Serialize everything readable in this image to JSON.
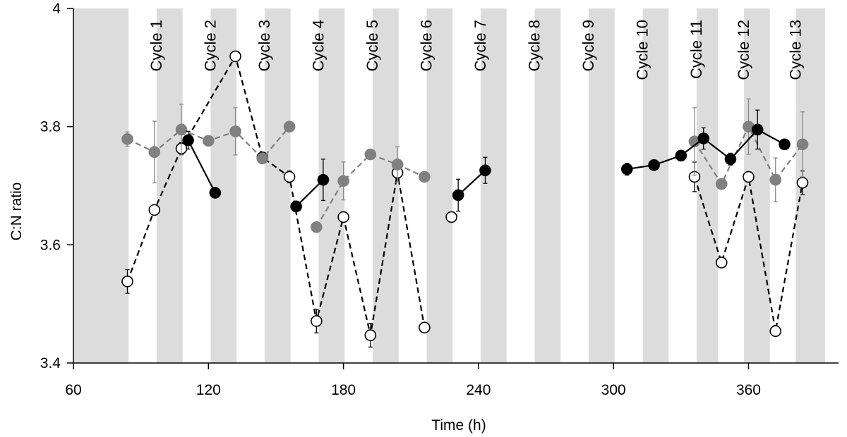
{
  "chart_data": {
    "type": "scatter",
    "title": "",
    "xlabel": "Time (h)",
    "ylabel": "C:N ratio",
    "xlim": [
      60,
      400
    ],
    "ylim": [
      3.4,
      4.0
    ],
    "xticks": [
      60,
      120,
      180,
      240,
      300,
      360
    ],
    "yticks": [
      3.4,
      3.6,
      3.8,
      4.0
    ],
    "xtick_labels": [
      "60",
      "120",
      "180",
      "240",
      "300",
      "360"
    ],
    "ytick_labels": [
      "3.4",
      "3.6",
      "3.8",
      "4"
    ],
    "shaded_bands": [
      [
        60,
        84.5
      ],
      [
        97,
        108.5
      ],
      [
        121,
        132.5
      ],
      [
        145,
        156.5
      ],
      [
        169,
        180.5
      ],
      [
        193,
        204.5
      ],
      [
        217,
        228.5
      ],
      [
        241,
        252.5
      ],
      [
        265,
        276.5
      ],
      [
        289,
        300.5
      ],
      [
        313,
        324.5
      ],
      [
        337,
        346.5
      ],
      [
        358,
        369.5
      ],
      [
        381,
        394
      ]
    ],
    "cycle_labels": [
      {
        "text": "Cycle 1",
        "x": 97
      },
      {
        "text": "Cycle 2",
        "x": 121
      },
      {
        "text": "Cycle 3",
        "x": 145
      },
      {
        "text": "Cycle 4",
        "x": 169
      },
      {
        "text": "Cycle 5",
        "x": 193
      },
      {
        "text": "Cycle 6",
        "x": 217
      },
      {
        "text": "Cycle 7",
        "x": 241
      },
      {
        "text": "Cycle 8",
        "x": 265
      },
      {
        "text": "Cycle 9",
        "x": 289
      },
      {
        "text": "Cycle 10",
        "x": 313
      },
      {
        "text": "Cycle 11",
        "x": 337
      },
      {
        "text": "Cycle 12",
        "x": 358
      },
      {
        "text": "Cycle 13",
        "x": 381
      }
    ],
    "series": [
      {
        "name": "open-circles",
        "marker": "open",
        "line": "dashed",
        "color": "#000000",
        "segments": [
          [
            {
              "x": 84,
              "y": 3.538,
              "err": 0.02
            },
            {
              "x": 96,
              "y": 3.659,
              "err": 0.005
            },
            {
              "x": 108,
              "y": 3.763,
              "err": 0.01
            },
            {
              "x": 132,
              "y": 3.919,
              "err": 0.005
            },
            {
              "x": 144,
              "y": 3.748,
              "err": 0.005
            },
            {
              "x": 156,
              "y": 3.715,
              "err": 0.01
            },
            {
              "x": 168,
              "y": 3.471,
              "err": 0.02
            },
            {
              "x": 180,
              "y": 3.647,
              "err": 0.005
            },
            {
              "x": 192,
              "y": 3.447,
              "err": 0.02
            },
            {
              "x": 204,
              "y": 3.722,
              "err": 0.01
            },
            {
              "x": 216,
              "y": 3.46,
              "err": 0.005
            }
          ],
          [
            {
              "x": 228,
              "y": 3.647,
              "err": 0.005
            }
          ],
          [
            {
              "x": 336,
              "y": 3.715,
              "err": 0.025
            },
            {
              "x": 348,
              "y": 3.57,
              "err": 0.005
            },
            {
              "x": 360,
              "y": 3.715,
              "err": 0.005
            },
            {
              "x": 372,
              "y": 3.454,
              "err": 0.005
            },
            {
              "x": 384,
              "y": 3.705,
              "err": 0.02
            }
          ]
        ]
      },
      {
        "name": "grey-circles",
        "marker": "filled",
        "line": "dashed",
        "color": "#808080",
        "segments": [
          [
            {
              "x": 84,
              "y": 3.779,
              "err": 0.012
            },
            {
              "x": 96,
              "y": 3.757,
              "err": 0.052
            },
            {
              "x": 108,
              "y": 3.795,
              "err": 0.043
            },
            {
              "x": 120,
              "y": 3.776,
              "err": 0.005
            },
            {
              "x": 132,
              "y": 3.792,
              "err": 0.04
            },
            {
              "x": 144,
              "y": 3.746,
              "err": 0.008
            },
            {
              "x": 156,
              "y": 3.8,
              "err": 0.005
            }
          ],
          [
            {
              "x": 168,
              "y": 3.63,
              "err": 0.006
            },
            {
              "x": 180,
              "y": 3.708,
              "err": 0.032
            },
            {
              "x": 192,
              "y": 3.753,
              "err": 0.005
            },
            {
              "x": 204,
              "y": 3.736,
              "err": 0.03
            },
            {
              "x": 216,
              "y": 3.715,
              "err": 0.005
            }
          ],
          [
            {
              "x": 336,
              "y": 3.775,
              "err": 0.057
            },
            {
              "x": 348,
              "y": 3.703,
              "err": 0.005
            },
            {
              "x": 360,
              "y": 3.8,
              "err": 0.047
            },
            {
              "x": 372,
              "y": 3.71,
              "err": 0.037
            },
            {
              "x": 384,
              "y": 3.77,
              "err": 0.055
            }
          ]
        ]
      },
      {
        "name": "black-circles",
        "marker": "filled",
        "line": "solid",
        "color": "#000000",
        "segments": [
          [
            {
              "x": 111,
              "y": 3.777,
              "err": 0.015
            },
            {
              "x": 123,
              "y": 3.688,
              "err": 0.005
            }
          ],
          [
            {
              "x": 159,
              "y": 3.665,
              "err": 0.005
            },
            {
              "x": 171,
              "y": 3.71,
              "err": 0.035
            }
          ],
          [
            {
              "x": 231,
              "y": 3.684,
              "err": 0.027
            },
            {
              "x": 243,
              "y": 3.726,
              "err": 0.022
            }
          ],
          [
            {
              "x": 306,
              "y": 3.728,
              "err": 0.01
            },
            {
              "x": 318,
              "y": 3.735,
              "err": 0.005
            },
            {
              "x": 330,
              "y": 3.751,
              "err": 0.005
            },
            {
              "x": 340,
              "y": 3.78,
              "err": 0.018
            },
            {
              "x": 352,
              "y": 3.745,
              "err": 0.01
            },
            {
              "x": 364,
              "y": 3.795,
              "err": 0.033
            },
            {
              "x": 376,
              "y": 3.77,
              "err": 0.005
            }
          ]
        ]
      }
    ]
  }
}
